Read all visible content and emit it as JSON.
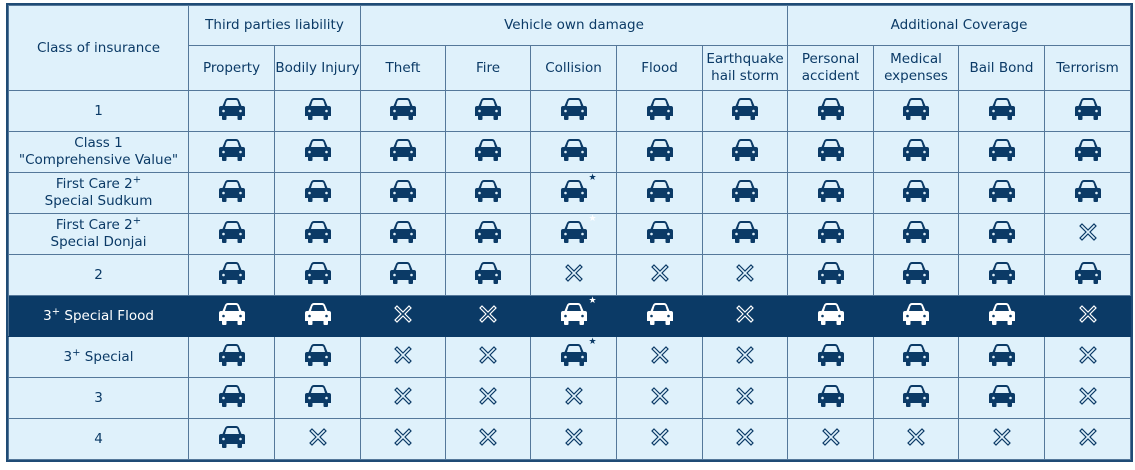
{
  "colors": {
    "dark": "#0b3a66",
    "light": "#dff1fb",
    "border": "#55789a"
  },
  "header": {
    "class_label": "Class of insurance",
    "groups": [
      {
        "label": "Third parties liability",
        "span": 2
      },
      {
        "label": "Vehicle own damage",
        "span": 5
      },
      {
        "label": "Additional Coverage",
        "span": 4
      }
    ],
    "columns": [
      [
        "Property"
      ],
      [
        "Bodily Injury"
      ],
      [
        "Theft"
      ],
      [
        "Fire"
      ],
      [
        "Collision"
      ],
      [
        "Flood"
      ],
      [
        "Earthquake",
        "hail storm"
      ],
      [
        "Personal",
        "accident"
      ],
      [
        "Medical",
        "expenses"
      ],
      [
        "Bail Bond"
      ],
      [
        "Terrorism"
      ]
    ]
  },
  "legend_icons": {
    "yes": "car-icon",
    "no": "x-icon",
    "star": "star-icon"
  },
  "rows": [
    {
      "label": [
        {
          "text": "1"
        }
      ],
      "cells": [
        "yes",
        "yes",
        "yes",
        "yes",
        "yes",
        "yes",
        "yes",
        "yes",
        "yes",
        "yes",
        "yes"
      ]
    },
    {
      "label": [
        {
          "text": "Class 1"
        },
        {
          "text": "\"Comprehensive Value\""
        }
      ],
      "cells": [
        "yes",
        "yes",
        "yes",
        "yes",
        "yes",
        "yes",
        "yes",
        "yes",
        "yes",
        "yes",
        "yes"
      ]
    },
    {
      "label": [
        {
          "text": "First Care 2",
          "sup": "+"
        },
        {
          "text": "Special Sudkum"
        }
      ],
      "cells": [
        "yes",
        "yes",
        "yes",
        "yes",
        "yes-star",
        "yes",
        "yes",
        "yes",
        "yes",
        "yes",
        "yes"
      ]
    },
    {
      "label": [
        {
          "text": "First Care 2",
          "sup": "+"
        },
        {
          "text": "Special Donjai"
        }
      ],
      "cells": [
        "yes",
        "yes",
        "yes",
        "yes",
        "yes-faint-star",
        "yes",
        "yes",
        "yes",
        "yes",
        "yes",
        "no"
      ]
    },
    {
      "label": [
        {
          "text": "2"
        }
      ],
      "cells": [
        "yes",
        "yes",
        "yes",
        "yes",
        "no",
        "no",
        "no",
        "yes",
        "yes",
        "yes",
        "yes"
      ]
    },
    {
      "label": [
        {
          "text": "3",
          "sup": "+",
          "after": " Special Flood"
        }
      ],
      "highlight": true,
      "cells": [
        "yes",
        "yes",
        "no",
        "no",
        "yes-star",
        "yes",
        "no",
        "yes",
        "yes",
        "yes",
        "no"
      ]
    },
    {
      "label": [
        {
          "text": "3",
          "sup": "+",
          "after": " Special"
        }
      ],
      "cells": [
        "yes",
        "yes",
        "no",
        "no",
        "yes-star",
        "no",
        "no",
        "yes",
        "yes",
        "yes",
        "no"
      ]
    },
    {
      "label": [
        {
          "text": "3"
        }
      ],
      "cells": [
        "yes",
        "yes",
        "no",
        "no",
        "no",
        "no",
        "no",
        "yes",
        "yes",
        "yes",
        "no"
      ]
    },
    {
      "label": [
        {
          "text": "4"
        }
      ],
      "cells": [
        "yes",
        "no",
        "no",
        "no",
        "no",
        "no",
        "no",
        "no",
        "no",
        "no",
        "no"
      ]
    }
  ]
}
